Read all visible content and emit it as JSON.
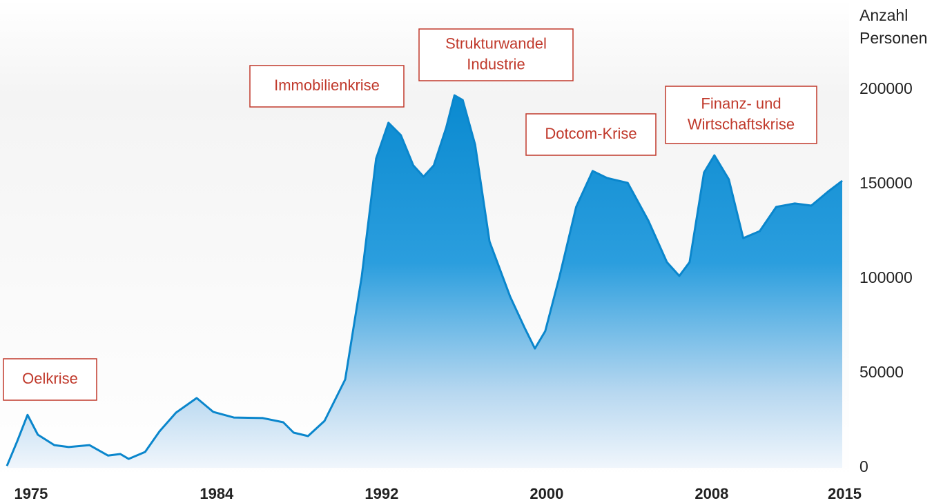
{
  "chart_data": {
    "type": "area",
    "y_label": [
      "Anzahl",
      "Personen"
    ],
    "annotations": [
      [
        "Oelkrise"
      ],
      [
        "Immobilienkrise"
      ],
      [
        "Strukturwandel",
        "Industrie"
      ],
      [
        "Dotcom-Krise"
      ],
      [
        "Finanz- und",
        "Wirtschaftskrise"
      ]
    ],
    "x": [
      1974.5,
      1975.0,
      1975.5,
      1976.0,
      1976.8,
      1977.5,
      1978.5,
      1979.4,
      1980.0,
      1980.4,
      1981.2,
      1981.9,
      1982.7,
      1983.7,
      1984.5,
      1985.5,
      1986.9,
      1987.9,
      1988.4,
      1989.1,
      1989.9,
      1990.9,
      1991.7,
      1992.4,
      1993.0,
      1993.6,
      1994.2,
      1994.7,
      1995.2,
      1995.8,
      1996.2,
      1996.6,
      1997.2,
      1997.9,
      1998.9,
      1999.6,
      2000.1,
      2000.6,
      2001.3,
      2002.1,
      2002.9,
      2003.6,
      2004.6,
      2005.6,
      2006.5,
      2007.1,
      2007.6,
      2008.3,
      2008.8,
      2009.5,
      2010.2,
      2011.0,
      2011.8,
      2012.7,
      2013.5,
      2014.3,
      2015.0
    ],
    "values": [
      1000,
      14000,
      28000,
      17500,
      12000,
      11000,
      12000,
      6500,
      7300,
      4700,
      8400,
      19300,
      29200,
      36900,
      29600,
      26600,
      26300,
      24100,
      18600,
      16800,
      24800,
      46700,
      101000,
      163500,
      182500,
      176000,
      160000,
      154000,
      160000,
      180000,
      197000,
      194500,
      171000,
      119700,
      90500,
      74100,
      63100,
      72300,
      101500,
      138000,
      157000,
      153300,
      150700,
      130700,
      108800,
      101500,
      108800,
      156200,
      165300,
      152600,
      121500,
      125200,
      138000,
      139800,
      138700,
      146000,
      151800
    ],
    "color": "#0a86cc",
    "xlim": [
      1974.5,
      2015.0
    ],
    "xticks": [
      1975,
      1984,
      1992,
      2000,
      2008,
      2015
    ],
    "ylim": [
      0,
      200000
    ],
    "yticks": [
      0,
      50000,
      100000,
      150000,
      200000
    ]
  }
}
